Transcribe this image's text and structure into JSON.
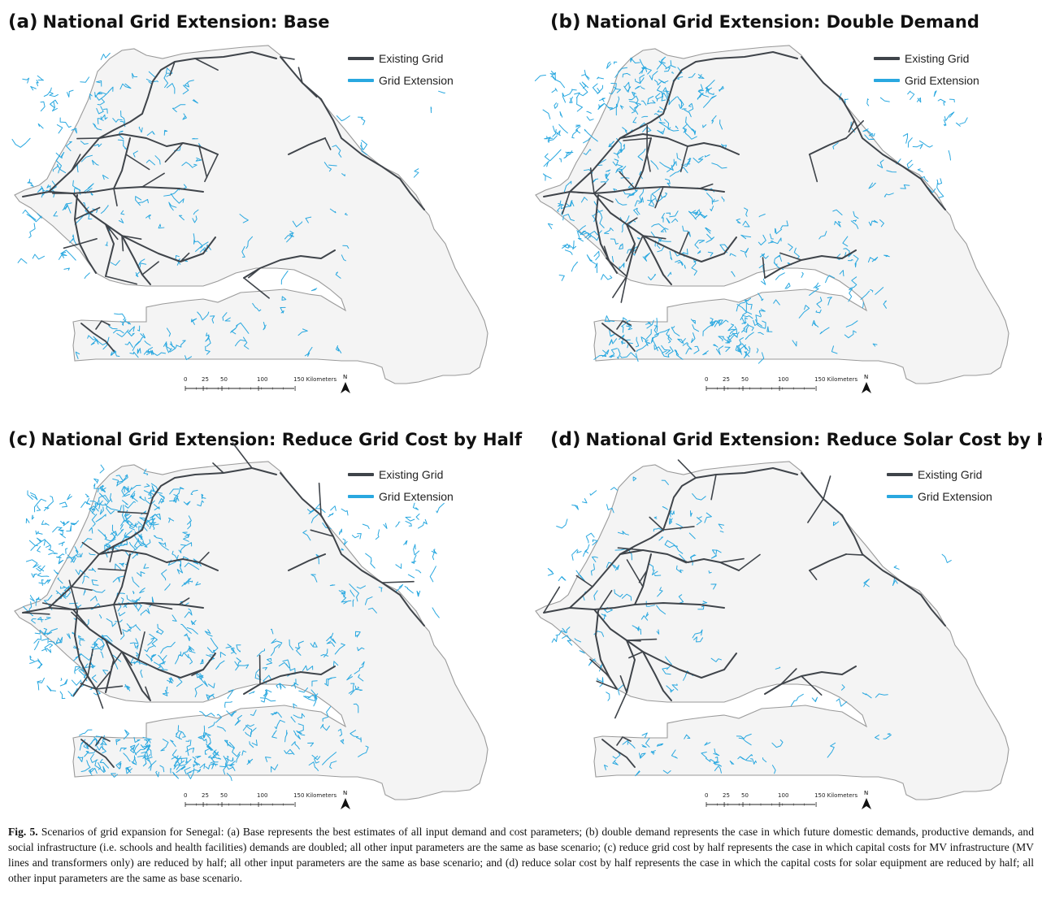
{
  "colors": {
    "existing_grid": "#3f444a",
    "grid_extension": "#29a8e0",
    "land": "#f4f4f4",
    "border": "#9a9a9a"
  },
  "legend": {
    "existing": "Existing Grid",
    "extension": "Grid Extension"
  },
  "scale": {
    "ticks": [
      "0",
      "25",
      "50",
      "100",
      "150 Kilometers"
    ],
    "north": "N"
  },
  "panels": [
    {
      "label": "(a)",
      "title": "National Grid Extension: Base",
      "ext_density": 1.0,
      "existing_density": 1.0
    },
    {
      "label": "(b)",
      "title": "National Grid Extension: Double Demand",
      "ext_density": 1.8,
      "existing_density": 1.0
    },
    {
      "label": "(c)",
      "title": "National Grid Extension: Reduce Grid Cost by Half",
      "ext_density": 2.2,
      "existing_density": 1.15
    },
    {
      "label": "(d)",
      "title": "National Grid Extension: Reduce Solar Cost by Half",
      "ext_density": 0.7,
      "existing_density": 1.05
    }
  ],
  "caption": {
    "fig": "Fig. 5.",
    "text": "Scenarios of grid expansion for Senegal: (a) Base represents the best estimates of all input demand and cost parameters; (b) double demand represents the case in which future domestic demands, productive demands, and social infrastructure (i.e. schools and health facilities) demands are doubled; all other input parameters are the same as base scenario; (c) reduce grid cost by half represents the case in which capital costs for MV infrastructure (MV lines and transformers only) are reduced by half; all other input parameters are the same as base scenario; and (d) reduce solar cost by half represents the case in which the capital costs for solar equipment are reduced by half; all other input parameters are the same as base scenario."
  }
}
